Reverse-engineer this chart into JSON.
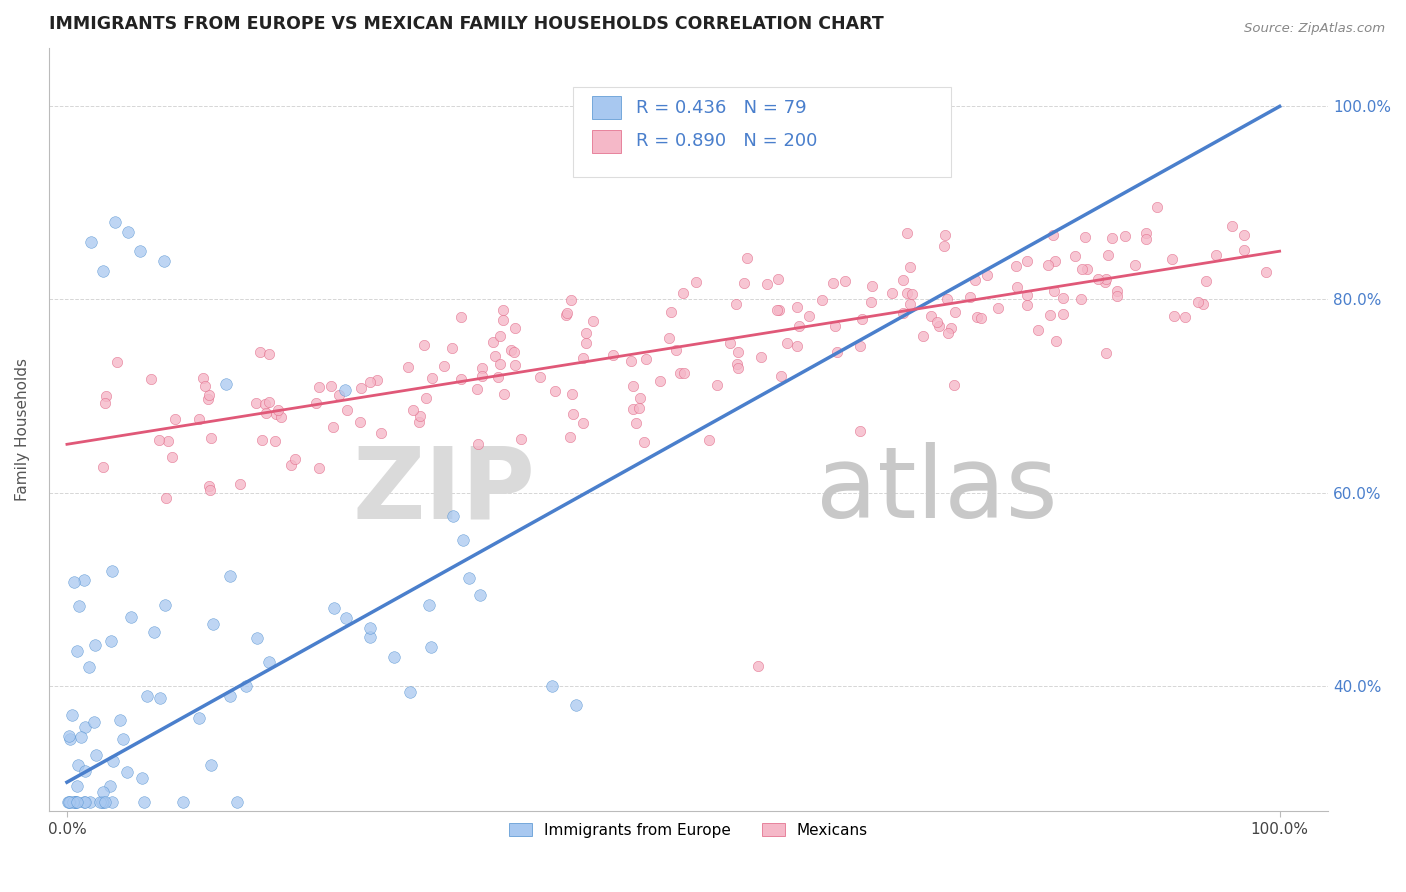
{
  "title": "IMMIGRANTS FROM EUROPE VS MEXICAN FAMILY HOUSEHOLDS CORRELATION CHART",
  "source": "Source: ZipAtlas.com",
  "ylabel": "Family Households",
  "legend_r1": "0.436",
  "legend_n1": "79",
  "legend_r2": "0.890",
  "legend_n2": "200",
  "legend_label1": "Immigrants from Europe",
  "legend_label2": "Mexicans",
  "blue_fill": "#A8C8F0",
  "pink_fill": "#F5B8C8",
  "blue_edge": "#5090D0",
  "pink_edge": "#E06080",
  "blue_line": "#4A7FCC",
  "pink_line": "#E05878",
  "title_color": "#222222",
  "right_tick_color": "#4A7FCC",
  "watermark_zip_color": "#DADADA",
  "watermark_atlas_color": "#C8C8C8"
}
